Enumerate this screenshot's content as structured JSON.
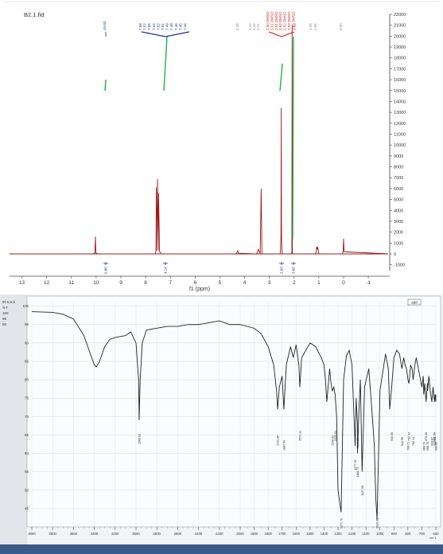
{
  "nmr": {
    "file_label": "B2.1.fid",
    "x_axis_label": "f1 (ppm)",
    "x_ticks": [
      13,
      12,
      11,
      10,
      9,
      8,
      7,
      6,
      5,
      4,
      3,
      2,
      1,
      0,
      -1
    ],
    "y_ticks": [
      22000,
      21000,
      20000,
      19000,
      18000,
      17000,
      16000,
      15000,
      14000,
      13000,
      12000,
      11000,
      10000,
      9000,
      8000,
      7000,
      6000,
      5000,
      4000,
      3000,
      2000,
      1000,
      0,
      -1000
    ],
    "colors": {
      "spectrum": "#a01818",
      "integral": "#22b14c",
      "blue_labels": "#1f2d8c",
      "red_labels": "#d02020",
      "gray_labels": "#8a8a8a"
    },
    "peak_labels_blue": [
      "10.03",
      "7.58",
      "7.57",
      "7.56",
      "7.54",
      "7.52",
      "7.51",
      "7.49",
      "7.48",
      "7.46",
      "7.45",
      "7.44"
    ],
    "peak_labels_red": [
      "2.50 DMSO",
      "2.51 DMSO",
      "2.51 DMSO",
      "2.52 DMSO",
      "2.52 DMSO",
      "2.53 DMSO",
      "2.53 DMSO"
    ],
    "peak_labels_gray": [
      "4.28",
      "3.47",
      "3.44",
      "3.41",
      "2.08",
      "1.09",
      "1.05",
      "0.00"
    ],
    "integrals": [
      "0.86",
      "4.14",
      "2.03",
      "3.05"
    ]
  },
  "ir": {
    "side_panel_text": [
      "IR-5.6.6",
      "%T",
      "100",
      "95",
      "90"
    ],
    "y_ticks": [
      100,
      95,
      90,
      85,
      80,
      75,
      70,
      65,
      60,
      55,
      50,
      45
    ],
    "x_ticks": [
      4000,
      3800,
      3600,
      3400,
      3200,
      3000,
      2800,
      2600,
      2400,
      2200,
      2000,
      1900,
      1800,
      1700,
      1600,
      1500,
      1400,
      1300,
      1200,
      1100,
      1000,
      900,
      800,
      700,
      600
    ],
    "x_unit": "cm-1",
    "button_label": "add",
    "peak_labels": [
      "2969.62",
      "1731.95",
      "1687.54",
      "1573.31",
      "1340.02",
      "1277.76",
      "1320.84",
      "1177.29",
      "1160.73",
      "1127.59",
      "1161.00",
      "1020.61",
      "916.00",
      "842.99",
      "799.71",
      "792.42",
      "762.44",
      "686.74",
      "670.00",
      "628.87",
      "658.78",
      "611.58",
      "609.90",
      "600.85"
    ]
  },
  "chart_data": [
    {
      "type": "line",
      "title": "B2.1.fid",
      "xlabel": "f1 (ppm)",
      "ylabel": "",
      "xlim": [
        13.5,
        -1.8
      ],
      "ylim": [
        -1800,
        22000
      ],
      "grid": false,
      "series": [
        {
          "x": [
            13.5,
            10.12,
            10.05,
            10.03,
            10.01,
            9.95,
            7.62,
            7.58,
            7.57,
            7.56,
            7.54,
            7.52,
            7.51,
            7.49,
            7.48,
            7.46,
            7.45,
            7.44,
            7.4,
            4.4,
            4.32,
            4.28,
            4.24,
            3.55,
            3.5,
            3.47,
            3.44,
            3.41,
            3.37,
            3.33,
            3.3,
            2.58,
            2.55,
            2.53,
            2.52,
            2.51,
            2.5,
            2.49,
            2.47,
            2.1,
            2.09,
            2.08,
            2.07,
            2.06,
            1.15,
            1.1,
            1.09,
            1.07,
            1.05,
            1.0,
            0.05,
            0.02,
            0.0,
            -0.02,
            -1.8
          ],
          "y": [
            0,
            0,
            100,
            1600,
            100,
            0,
            0,
            300,
            6100,
            300,
            3500,
            6900,
            3600,
            300,
            5600,
            3300,
            2000,
            300,
            0,
            0,
            60,
            300,
            60,
            0,
            60,
            300,
            420,
            200,
            60,
            6000,
            0,
            0,
            200,
            1800,
            13400,
            2600,
            900,
            200,
            0,
            0,
            200,
            21000,
            200,
            0,
            0,
            200,
            650,
            400,
            650,
            0,
            0,
            200,
            1400,
            200,
            0
          ]
        }
      ]
    },
    {
      "type": "line",
      "title": "",
      "xlabel": "",
      "ylabel": "%T",
      "xlim": [
        4000,
        600
      ],
      "ylim": [
        40,
        101
      ],
      "grid": true,
      "series": [
        {
          "x": [
            4000,
            3800,
            3700,
            3600,
            3500,
            3450,
            3400,
            3380,
            3350,
            3300,
            3250,
            3200,
            3100,
            3050,
            3000,
            2975,
            2969.62,
            2960,
            2940,
            2900,
            2800,
            2700,
            2600,
            2500,
            2400,
            2300,
            2200,
            2150,
            2100,
            2000,
            1900,
            1850,
            1800,
            1760,
            1740,
            1731.95,
            1720,
            1700,
            1687.54,
            1670,
            1640,
            1620,
            1600,
            1580,
            1573.31,
            1560,
            1500,
            1460,
            1420,
            1400,
            1390,
            1380,
            1360,
            1350,
            1340.02,
            1330,
            1320.84,
            1310,
            1300,
            1277.76,
            1260,
            1240,
            1220,
            1200,
            1177.29,
            1170,
            1161.0,
            1160.73,
            1150,
            1140,
            1127.59,
            1110,
            1080,
            1060,
            1040,
            1030,
            1020.61,
            1010,
            1000,
            980,
            960,
            940,
            930,
            916.0,
            900,
            880,
            860,
            842.99,
            830,
            820,
            810,
            799.71,
            792.42,
            780,
            770,
            762.44,
            750,
            740,
            720,
            700,
            690,
            686.74,
            680,
            670.0,
            660,
            658.78,
            650,
            640,
            628.87,
            620,
            611.58,
            609.9,
            605,
            600.85,
            600
          ],
          "y": [
            98.5,
            98.3,
            97.8,
            96.5,
            92.0,
            88.0,
            84.0,
            83.5,
            85.0,
            89.0,
            91.0,
            91.5,
            92.0,
            93.0,
            90.0,
            80.0,
            69.0,
            80.0,
            90.0,
            93.5,
            94.0,
            94.5,
            94.5,
            95.0,
            95.0,
            95.5,
            96.0,
            95.5,
            95.0,
            95.0,
            94.0,
            92.5,
            89.0,
            84.0,
            77.0,
            72.0,
            78.0,
            81.0,
            72.0,
            84.0,
            89.0,
            86.0,
            89.5,
            84.0,
            78.0,
            86.0,
            90.0,
            89.0,
            86.0,
            84.0,
            80.0,
            74.0,
            83.0,
            79.0,
            77.0,
            78.0,
            76.0,
            70.0,
            50.0,
            44.0,
            80.0,
            86.5,
            88.0,
            84.0,
            62.0,
            75.0,
            68.0,
            60.0,
            72.0,
            80.0,
            55.0,
            78.0,
            83.0,
            73.0,
            62.0,
            48.0,
            42.0,
            60.0,
            77.0,
            82.0,
            87.0,
            83.0,
            72.0,
            78.0,
            86.0,
            88.0,
            87.0,
            83.0,
            86.0,
            84.0,
            83.0,
            80.0,
            79.0,
            84.0,
            83.0,
            80.0,
            84.0,
            86.0,
            82.0,
            78.0,
            81.0,
            76.0,
            79.0,
            74.0,
            79.0,
            77.0,
            81.0,
            77.0,
            74.0,
            78.0,
            75.0,
            74.0,
            76.0,
            74.0,
            76.0
          ]
        }
      ]
    }
  ]
}
